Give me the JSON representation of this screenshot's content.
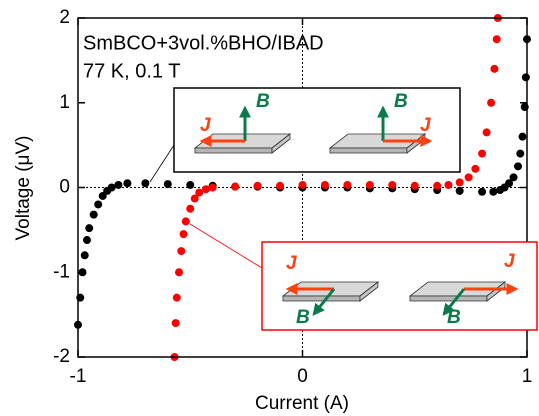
{
  "chart_data": {
    "type": "scatter",
    "annotations": [
      "SmBCO+3vol.%BHO/IBAD",
      "77 K, 0.1 T"
    ],
    "x_label": "Current (A)",
    "y_label": "Voltage (μV)",
    "xlim": [
      -1,
      1
    ],
    "ylim": [
      -2,
      2
    ],
    "xticks": [
      -1,
      0,
      1
    ],
    "yticks": [
      -2,
      -1,
      0,
      1,
      2
    ],
    "zero_lines": true,
    "series": [
      {
        "color": "#000000",
        "x": [
          -1.0,
          -0.99,
          -0.98,
          -0.97,
          -0.96,
          -0.95,
          -0.93,
          -0.91,
          -0.89,
          -0.87,
          -0.85,
          -0.82,
          -0.78,
          -0.7,
          -0.6,
          -0.5,
          -0.4,
          -0.3,
          -0.2,
          -0.1,
          0.0,
          0.1,
          0.2,
          0.3,
          0.4,
          0.5,
          0.6,
          0.7,
          0.8,
          0.85,
          0.88,
          0.9,
          0.92,
          0.94,
          0.96,
          0.97,
          0.98,
          0.99,
          0.995,
          1.0
        ],
        "values": [
          -1.62,
          -1.3,
          -1.0,
          -0.8,
          -0.62,
          -0.48,
          -0.32,
          -0.2,
          -0.1,
          -0.04,
          0.0,
          0.03,
          0.05,
          0.05,
          0.04,
          0.03,
          0.02,
          0.01,
          0.01,
          0.0,
          0.0,
          0.0,
          0.0,
          -0.01,
          -0.01,
          -0.02,
          -0.03,
          -0.04,
          -0.05,
          -0.05,
          -0.03,
          0.0,
          0.05,
          0.12,
          0.25,
          0.4,
          0.6,
          0.95,
          1.3,
          1.75
        ]
      },
      {
        "color": "#ff0000",
        "x": [
          -0.57,
          -0.565,
          -0.56,
          -0.55,
          -0.54,
          -0.53,
          -0.52,
          -0.5,
          -0.48,
          -0.46,
          -0.43,
          -0.4,
          -0.3,
          -0.2,
          -0.1,
          0.0,
          0.1,
          0.2,
          0.3,
          0.4,
          0.5,
          0.6,
          0.65,
          0.7,
          0.74,
          0.77,
          0.8,
          0.82,
          0.84,
          0.855,
          0.865,
          0.87
        ],
        "values": [
          -2.0,
          -1.6,
          -1.3,
          -1.0,
          -0.75,
          -0.55,
          -0.4,
          -0.25,
          -0.13,
          -0.06,
          -0.02,
          0.0,
          0.01,
          0.02,
          0.02,
          0.03,
          0.03,
          0.03,
          0.03,
          0.03,
          0.02,
          0.02,
          0.03,
          0.06,
          0.12,
          0.22,
          0.4,
          0.65,
          1.0,
          1.4,
          1.75,
          2.0
        ]
      }
    ],
    "insets": [
      {
        "border_color": "#000000",
        "labels": [
          "B",
          "J",
          "B",
          "J"
        ]
      },
      {
        "border_color": "#ff0000",
        "labels": [
          "J",
          "B",
          "J",
          "B"
        ]
      }
    ]
  }
}
